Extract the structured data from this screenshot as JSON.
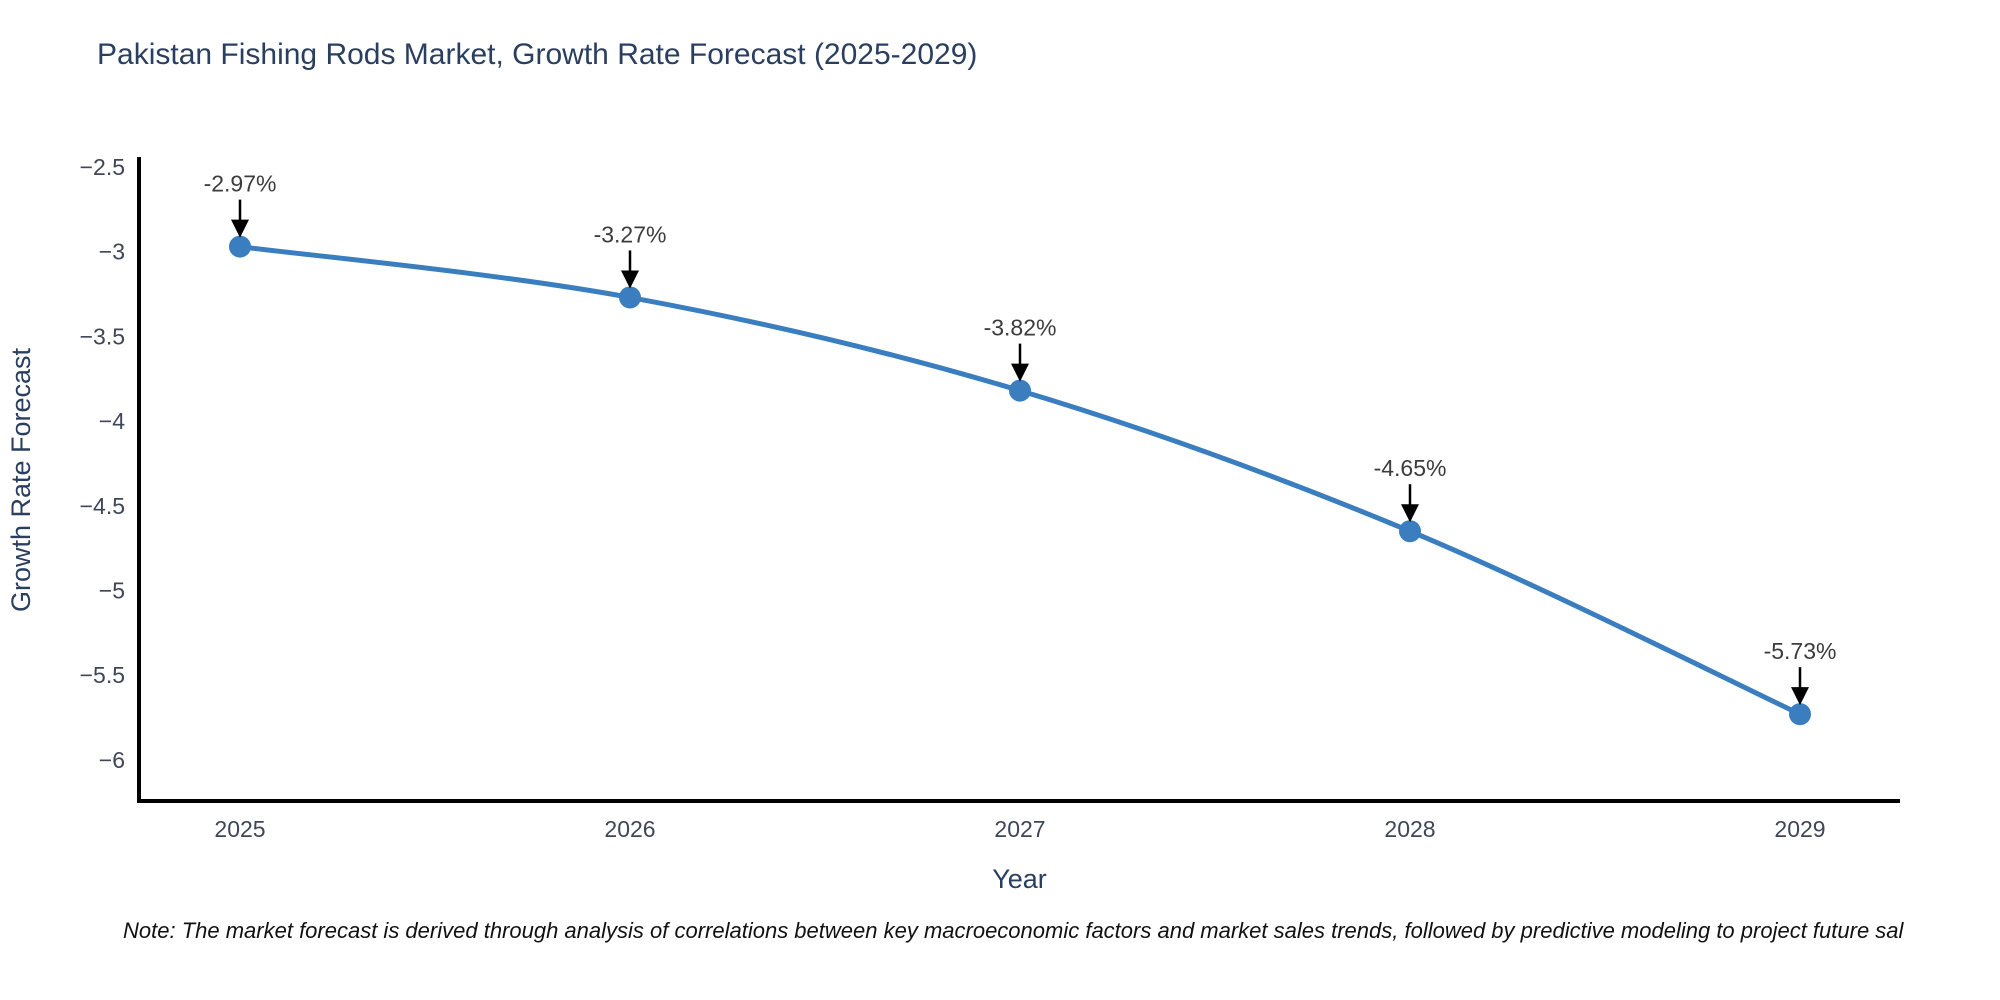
{
  "title": "Pakistan Fishing Rods Market, Growth Rate Forecast (2025-2029)",
  "note": "Note: The market forecast is derived through analysis of correlations between key macroeconomic factors and market sales trends, followed by predictive modeling to project future sal",
  "chart_data": {
    "type": "line",
    "title": "Pakistan Fishing Rods Market, Growth Rate Forecast (2025-2029)",
    "xlabel": "Year",
    "ylabel": "Growth Rate Forecast",
    "x": [
      2025,
      2026,
      2027,
      2028,
      2029
    ],
    "y": [
      -2.97,
      -3.27,
      -3.82,
      -4.65,
      -5.73
    ],
    "point_labels": [
      "-2.97%",
      "-3.27%",
      "-3.82%",
      "-4.65%",
      "-5.73%"
    ],
    "xtick_labels": [
      "2025",
      "2026",
      "2027",
      "2028",
      "2029"
    ],
    "yticks": [
      -2.5,
      -3,
      -3.5,
      -4,
      -4.5,
      -5,
      -5.5,
      -6
    ],
    "ytick_labels": [
      "−2.5",
      "−3",
      "−3.5",
      "−4",
      "−4.5",
      "−5",
      "−5.5",
      "−6"
    ],
    "ylim": [
      -6.3,
      -2.5
    ],
    "grid": false,
    "legend": false,
    "line_color": "#3a7ebf",
    "marker_color": "#3a7ebf",
    "axis_color": "#000000",
    "tick_color": "#3f4657",
    "annotation_text_color": "#3c3c3c",
    "annotation_arrow_color": "#000000"
  },
  "colors": {
    "title": "#2a3f5f",
    "axis_title": "#2a3f5f",
    "background": "#ffffff"
  }
}
